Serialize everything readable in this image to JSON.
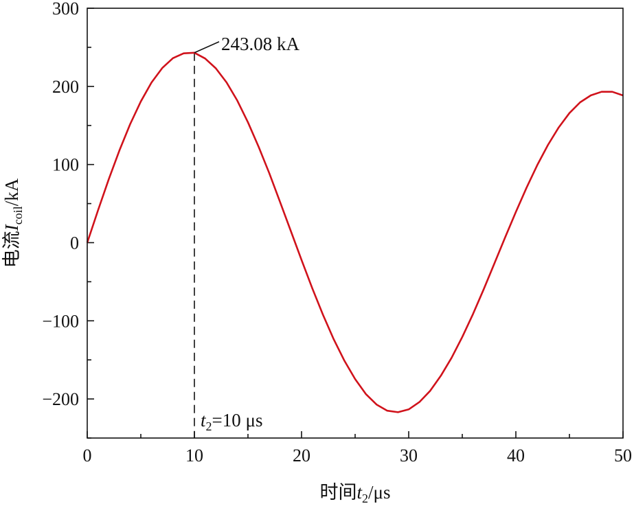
{
  "chart_data": {
    "type": "line",
    "xlabel": {
      "prefix": "时间",
      "var": "t",
      "sub": "2",
      "unit": "/μs"
    },
    "ylabel": {
      "prefix": "电流",
      "var": "I",
      "sub": "coil",
      "unit": "/kA"
    },
    "xlim": [
      0,
      50
    ],
    "ylim": [
      -250,
      300
    ],
    "x_ticks": [
      "0",
      "10",
      "20",
      "30",
      "40",
      "50"
    ],
    "y_ticks": [
      "300",
      "200",
      "100",
      "0",
      "−100",
      "−200"
    ],
    "x_tick_values": [
      0,
      10,
      20,
      30,
      40,
      50
    ],
    "y_tick_values": [
      300,
      200,
      100,
      0,
      -100,
      -200
    ],
    "grid": false,
    "series": [
      {
        "color": "#d0121b",
        "x": [
          0,
          1,
          2,
          3,
          4,
          5,
          6,
          7,
          8,
          9,
          10,
          11,
          12,
          13,
          14,
          15,
          16,
          17,
          18,
          19,
          20,
          21,
          22,
          23,
          24,
          25,
          26,
          27,
          28,
          29,
          30,
          31,
          32,
          33,
          34,
          35,
          36,
          37,
          38,
          39,
          40,
          41,
          42,
          43,
          44,
          45,
          46,
          47,
          48,
          49,
          50
        ],
        "y": [
          0,
          41.2,
          80.9,
          117.9,
          151.5,
          180.7,
          205.0,
          223.5,
          236.1,
          242.3,
          243.08,
          235.7,
          223.1,
          205.1,
          181.9,
          154.0,
          122.5,
          88.5,
          51.9,
          14.9,
          -22.2,
          -58.3,
          -92.3,
          -123.6,
          -151.1,
          -174.5,
          -193.7,
          -207.1,
          -215.0,
          -217.0,
          -213.4,
          -204.0,
          -189.6,
          -170.3,
          -147.4,
          -120.7,
          -91.3,
          -59.6,
          -26.5,
          6.7,
          39.3,
          70.4,
          99.3,
          125.2,
          147.5,
          165.8,
          179.6,
          188.5,
          193.1,
          193.1,
          188.4
        ]
      }
    ],
    "annotations": {
      "peak_label": "243.08 kA",
      "peak_x": 10,
      "peak_y": 243.08,
      "marker_label": {
        "var": "t",
        "sub": "2",
        "rest": "=10 μs"
      }
    }
  }
}
